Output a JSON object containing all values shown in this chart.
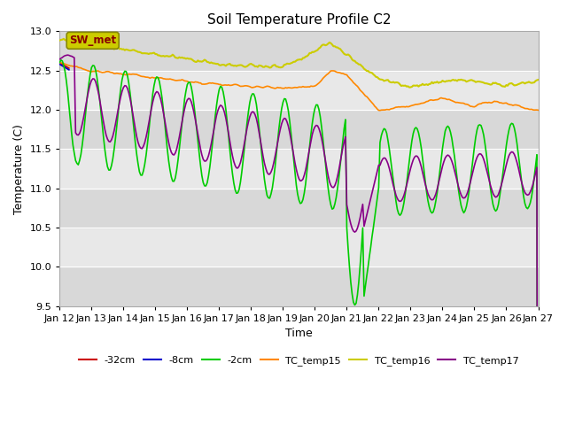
{
  "title": "Soil Temperature Profile C2",
  "xlabel": "Time",
  "ylabel": "Temperature (C)",
  "ylim": [
    9.5,
    13.0
  ],
  "xlim": [
    0,
    360
  ],
  "x_tick_labels": [
    "Jan 12",
    "Jan 13",
    "Jan 14",
    "Jan 15",
    "Jan 16",
    "Jan 17",
    "Jan 18",
    "Jan 19",
    "Jan 20",
    "Jan 21",
    "Jan 22",
    "Jan 23",
    "Jan 24",
    "Jan 25",
    "Jan 26",
    "Jan 27"
  ],
  "x_tick_positions": [
    0,
    24,
    48,
    72,
    96,
    120,
    144,
    168,
    192,
    216,
    240,
    264,
    288,
    312,
    336,
    360
  ],
  "legend_labels": [
    "-32cm",
    "-8cm",
    "-2cm",
    "TC_temp15",
    "TC_temp16",
    "TC_temp17"
  ],
  "line_colors": {
    "neg32": "#cc0000",
    "neg8": "#0000cc",
    "neg2": "#00cc00",
    "tc15": "#ff8800",
    "tc16": "#cccc00",
    "tc17": "#880088"
  },
  "sw_met_box_facecolor": "#cccc00",
  "sw_met_text_color": "#880000",
  "sw_met_edge_color": "#888800",
  "bg_color": "#ffffff",
  "plot_bg_color": "#e8e8e8",
  "band_colors": [
    "#d8d8d8",
    "#e8e8e8"
  ],
  "yticks": [
    9.5,
    10.0,
    10.5,
    11.0,
    11.5,
    12.0,
    12.5,
    13.0
  ]
}
